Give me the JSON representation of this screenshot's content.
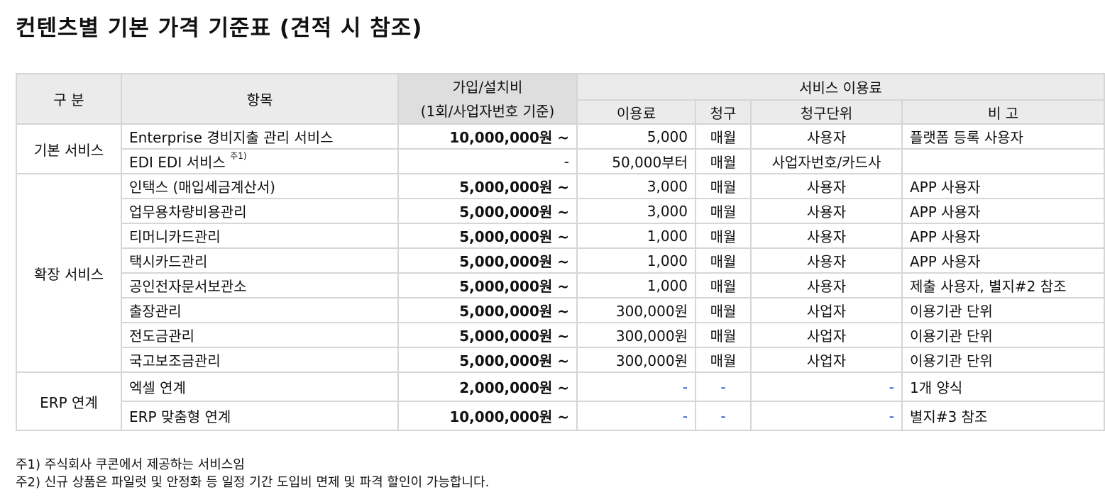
{
  "title": "컨텐츠별 기본 가격 기준표 (견적 시 참조)",
  "header": {
    "category": "구 분",
    "item": "항목",
    "setup_line1": "가입/설치비",
    "setup_line2": "(1회/사업자번호 기준)",
    "service_fee": "서비스 이용료",
    "fee": "이용료",
    "billing": "청구",
    "billing_unit": "청구단위",
    "remark": "비 고"
  },
  "groups": [
    {
      "name": "기본 서비스",
      "rows": [
        {
          "item": "Enterprise 경비지출 관리 서비스",
          "note_mark": "",
          "setup": "10,000,000원 ~",
          "fee": "5,000",
          "billing": "매월",
          "unit": "사용자",
          "remark": "플랫폼 등록 사용자"
        },
        {
          "item": "EDI EDI 서비스 ",
          "note_mark": "주1)",
          "setup": "-",
          "fee": "50,000부터",
          "billing": "매월",
          "unit": "사업자번호/카드사",
          "remark": ""
        }
      ]
    },
    {
      "name": "확장 서비스",
      "rows": [
        {
          "item": "인택스 (매입세금계산서)",
          "setup": "5,000,000원 ~",
          "fee": "3,000",
          "billing": "매월",
          "unit": "사용자",
          "remark": "APP 사용자"
        },
        {
          "item": "업무용차량비용관리",
          "setup": "5,000,000원 ~",
          "fee": "3,000",
          "billing": "매월",
          "unit": "사용자",
          "remark": "APP 사용자"
        },
        {
          "item": "티머니카드관리",
          "setup": "5,000,000원 ~",
          "fee": "1,000",
          "billing": "매월",
          "unit": "사용자",
          "remark": "APP 사용자"
        },
        {
          "item": "택시카드관리",
          "setup": "5,000,000원 ~",
          "fee": "1,000",
          "billing": "매월",
          "unit": "사용자",
          "remark": "APP 사용자"
        },
        {
          "item": "공인전자문서보관소",
          "setup": "5,000,000원 ~",
          "fee": "1,000",
          "billing": "매월",
          "unit": "사용자",
          "remark": "제출 사용자, 별지#2 참조"
        },
        {
          "item": "출장관리",
          "setup": "5,000,000원 ~",
          "fee": "300,000원",
          "billing": "매월",
          "unit": "사업자",
          "remark": "이용기관 단위"
        },
        {
          "item": "전도금관리",
          "setup": "5,000,000원 ~",
          "fee": "300,000원",
          "billing": "매월",
          "unit": "사업자",
          "remark": "이용기관 단위"
        },
        {
          "item": "국고보조금관리",
          "setup": "5,000,000원 ~",
          "fee": "300,000원",
          "billing": "매월",
          "unit": "사업자",
          "remark": "이용기관 단위"
        }
      ]
    },
    {
      "name": "ERP 연계",
      "rows": [
        {
          "item": "엑셀 연계",
          "setup": "2,000,000원 ~",
          "fee": "-",
          "billing": "-",
          "unit": "-",
          "remark": "1개 양식"
        },
        {
          "item": "ERP 맞춤형 연계",
          "setup": "10,000,000원 ~",
          "fee": "-",
          "billing": "-",
          "unit": "-",
          "remark": "별지#3 참조"
        }
      ]
    }
  ],
  "footnotes": [
    "주1) 주식회사 쿠콘에서 제공하는 서비스임",
    "주2) 신규 상품은 파일럿 및 안정화 등 일정 기간 도입비 면제 및 파격 할인이 가능합니다."
  ],
  "colors": {
    "header_bg": "#ebebeb",
    "setup_header_bg": "#dedede",
    "border": "#d6d6d6",
    "dash_blue": "#2040c8"
  }
}
